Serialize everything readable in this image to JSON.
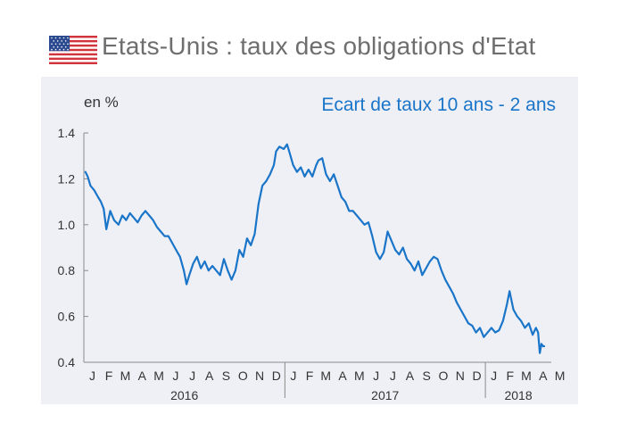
{
  "header": {
    "title": "Etats-Unis : taux des obligations d'Etat",
    "flag_icon": "us-flag-icon"
  },
  "colors": {
    "panel_bg": "#eef0f6",
    "series": "#1a75c9",
    "subtitle": "#1a75c9",
    "axis": "#8a8a8a",
    "text": "#333333"
  },
  "chart_data": {
    "type": "line",
    "ylabel": "en %",
    "subtitle": "Ecart de taux 10 ans - 2 ans",
    "ylim": [
      0.4,
      1.4
    ],
    "yticks": [
      0.4,
      0.6,
      0.8,
      1.0,
      1.2,
      1.4
    ],
    "ytick_labels": [
      "0.4",
      "0.6",
      "0.8",
      "1.0",
      "1.2",
      "1.4"
    ],
    "x_range": [
      "2016-01-01",
      "2018-05-01"
    ],
    "month_labels": [
      "J",
      "F",
      "M",
      "A",
      "M",
      "J",
      "J",
      "A",
      "S",
      "O",
      "N",
      "D",
      "J",
      "F",
      "M",
      "A",
      "M",
      "J",
      "J",
      "A",
      "S",
      "O",
      "N",
      "D",
      "J",
      "F",
      "M",
      "A",
      "M"
    ],
    "year_labels": [
      "2016",
      "2017",
      "2018"
    ],
    "grid": false,
    "series": [
      {
        "points": [
          [
            "2016-01-04",
            1.23
          ],
          [
            "2016-01-08",
            1.21
          ],
          [
            "2016-01-13",
            1.17
          ],
          [
            "2016-01-20",
            1.15
          ],
          [
            "2016-01-27",
            1.12
          ],
          [
            "2016-02-01",
            1.1
          ],
          [
            "2016-02-06",
            1.07
          ],
          [
            "2016-02-11",
            0.98
          ],
          [
            "2016-02-18",
            1.06
          ],
          [
            "2016-02-25",
            1.02
          ],
          [
            "2016-03-04",
            1.0
          ],
          [
            "2016-03-11",
            1.04
          ],
          [
            "2016-03-18",
            1.02
          ],
          [
            "2016-03-25",
            1.05
          ],
          [
            "2016-04-01",
            1.03
          ],
          [
            "2016-04-08",
            1.01
          ],
          [
            "2016-04-15",
            1.04
          ],
          [
            "2016-04-22",
            1.06
          ],
          [
            "2016-04-29",
            1.04
          ],
          [
            "2016-05-06",
            1.02
          ],
          [
            "2016-05-13",
            0.99
          ],
          [
            "2016-05-20",
            0.97
          ],
          [
            "2016-05-27",
            0.95
          ],
          [
            "2016-06-03",
            0.95
          ],
          [
            "2016-06-10",
            0.92
          ],
          [
            "2016-06-17",
            0.89
          ],
          [
            "2016-06-24",
            0.86
          ],
          [
            "2016-07-01",
            0.8
          ],
          [
            "2016-07-06",
            0.74
          ],
          [
            "2016-07-11",
            0.78
          ],
          [
            "2016-07-18",
            0.83
          ],
          [
            "2016-07-25",
            0.86
          ],
          [
            "2016-08-01",
            0.81
          ],
          [
            "2016-08-08",
            0.84
          ],
          [
            "2016-08-15",
            0.8
          ],
          [
            "2016-08-22",
            0.82
          ],
          [
            "2016-08-29",
            0.8
          ],
          [
            "2016-09-05",
            0.78
          ],
          [
            "2016-09-12",
            0.85
          ],
          [
            "2016-09-19",
            0.8
          ],
          [
            "2016-09-26",
            0.76
          ],
          [
            "2016-10-03",
            0.8
          ],
          [
            "2016-10-10",
            0.89
          ],
          [
            "2016-10-17",
            0.86
          ],
          [
            "2016-10-24",
            0.94
          ],
          [
            "2016-10-31",
            0.91
          ],
          [
            "2016-11-07",
            0.96
          ],
          [
            "2016-11-14",
            1.09
          ],
          [
            "2016-11-21",
            1.17
          ],
          [
            "2016-11-28",
            1.19
          ],
          [
            "2016-12-05",
            1.22
          ],
          [
            "2016-12-12",
            1.26
          ],
          [
            "2016-12-16",
            1.32
          ],
          [
            "2016-12-22",
            1.34
          ],
          [
            "2016-12-30",
            1.33
          ],
          [
            "2017-01-05",
            1.35
          ],
          [
            "2017-01-10",
            1.31
          ],
          [
            "2017-01-16",
            1.26
          ],
          [
            "2017-01-23",
            1.23
          ],
          [
            "2017-01-30",
            1.25
          ],
          [
            "2017-02-06",
            1.21
          ],
          [
            "2017-02-13",
            1.24
          ],
          [
            "2017-02-20",
            1.21
          ],
          [
            "2017-02-27",
            1.26
          ],
          [
            "2017-03-03",
            1.28
          ],
          [
            "2017-03-10",
            1.29
          ],
          [
            "2017-03-17",
            1.22
          ],
          [
            "2017-03-24",
            1.19
          ],
          [
            "2017-03-31",
            1.22
          ],
          [
            "2017-04-07",
            1.17
          ],
          [
            "2017-04-14",
            1.12
          ],
          [
            "2017-04-21",
            1.1
          ],
          [
            "2017-04-28",
            1.06
          ],
          [
            "2017-05-05",
            1.06
          ],
          [
            "2017-05-12",
            1.04
          ],
          [
            "2017-05-19",
            1.02
          ],
          [
            "2017-05-26",
            1.0
          ],
          [
            "2017-06-02",
            1.01
          ],
          [
            "2017-06-09",
            0.95
          ],
          [
            "2017-06-16",
            0.88
          ],
          [
            "2017-06-23",
            0.85
          ],
          [
            "2017-06-30",
            0.88
          ],
          [
            "2017-07-07",
            0.97
          ],
          [
            "2017-07-14",
            0.93
          ],
          [
            "2017-07-21",
            0.89
          ],
          [
            "2017-07-28",
            0.87
          ],
          [
            "2017-08-04",
            0.9
          ],
          [
            "2017-08-11",
            0.85
          ],
          [
            "2017-08-18",
            0.83
          ],
          [
            "2017-08-25",
            0.8
          ],
          [
            "2017-09-01",
            0.84
          ],
          [
            "2017-09-08",
            0.78
          ],
          [
            "2017-09-15",
            0.81
          ],
          [
            "2017-09-22",
            0.84
          ],
          [
            "2017-09-29",
            0.86
          ],
          [
            "2017-10-06",
            0.85
          ],
          [
            "2017-10-13",
            0.8
          ],
          [
            "2017-10-20",
            0.76
          ],
          [
            "2017-10-27",
            0.73
          ],
          [
            "2017-11-03",
            0.7
          ],
          [
            "2017-11-10",
            0.66
          ],
          [
            "2017-11-17",
            0.63
          ],
          [
            "2017-11-24",
            0.6
          ],
          [
            "2017-12-01",
            0.57
          ],
          [
            "2017-12-08",
            0.56
          ],
          [
            "2017-12-15",
            0.53
          ],
          [
            "2017-12-22",
            0.55
          ],
          [
            "2017-12-29",
            0.51
          ],
          [
            "2018-01-05",
            0.53
          ],
          [
            "2018-01-12",
            0.55
          ],
          [
            "2018-01-19",
            0.53
          ],
          [
            "2018-01-26",
            0.54
          ],
          [
            "2018-02-02",
            0.58
          ],
          [
            "2018-02-09",
            0.65
          ],
          [
            "2018-02-14",
            0.71
          ],
          [
            "2018-02-21",
            0.63
          ],
          [
            "2018-02-28",
            0.6
          ],
          [
            "2018-03-07",
            0.58
          ],
          [
            "2018-03-14",
            0.55
          ],
          [
            "2018-03-21",
            0.57
          ],
          [
            "2018-03-28",
            0.52
          ],
          [
            "2018-04-03",
            0.55
          ],
          [
            "2018-04-07",
            0.53
          ],
          [
            "2018-04-10",
            0.44
          ],
          [
            "2018-04-13",
            0.48
          ],
          [
            "2018-04-16",
            0.47
          ],
          [
            "2018-04-18",
            0.47
          ]
        ]
      }
    ]
  }
}
